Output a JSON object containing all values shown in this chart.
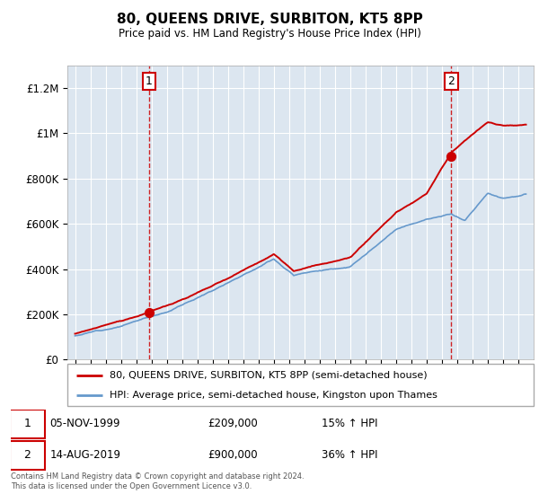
{
  "title": "80, QUEENS DRIVE, SURBITON, KT5 8PP",
  "subtitle": "Price paid vs. HM Land Registry's House Price Index (HPI)",
  "hpi_label": "HPI: Average price, semi-detached house, Kingston upon Thames",
  "price_label": "80, QUEENS DRIVE, SURBITON, KT5 8PP (semi-detached house)",
  "price_color": "#cc0000",
  "hpi_color": "#6699cc",
  "plot_bg_color": "#dce6f0",
  "marker1": {
    "date_idx": 1999.85,
    "price": 209000,
    "label": "1",
    "text": "05-NOV-1999",
    "amount": "£209,000",
    "hpi_pct": "15% ↑ HPI"
  },
  "marker2": {
    "date_idx": 2019.62,
    "price": 900000,
    "label": "2",
    "text": "14-AUG-2019",
    "amount": "£900,000",
    "hpi_pct": "36% ↑ HPI"
  },
  "ylim": [
    0,
    1300000
  ],
  "yticks": [
    0,
    200000,
    400000,
    600000,
    800000,
    1000000,
    1200000
  ],
  "xlim_start": 1994.5,
  "xlim_end": 2025.0,
  "footer": "Contains HM Land Registry data © Crown copyright and database right 2024.\nThis data is licensed under the Open Government Licence v3.0."
}
